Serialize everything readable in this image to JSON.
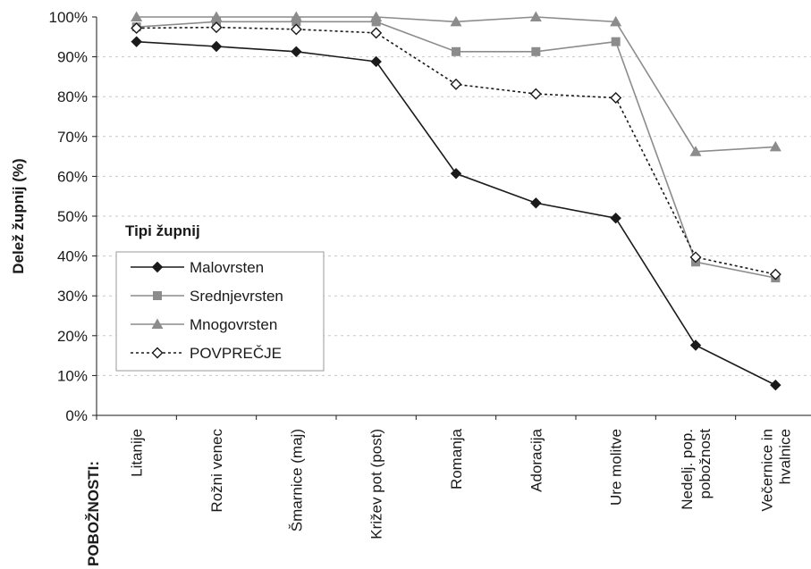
{
  "chart_data": {
    "type": "line",
    "ylabel": "Delež župnij (%)",
    "row_label": "POBOŽNOSTI:",
    "legend_title": "Tipi župnij",
    "legend_position": "left-middle",
    "ylim": [
      0,
      100
    ],
    "yticks": [
      0,
      10,
      20,
      30,
      40,
      50,
      60,
      70,
      80,
      90,
      100
    ],
    "ytick_labels": [
      "0%",
      "10%",
      "20%",
      "30%",
      "40%",
      "50%",
      "60%",
      "70%",
      "80%",
      "90%",
      "100%"
    ],
    "grid": true,
    "categories": [
      [
        "Litanije"
      ],
      [
        "Rožni venec"
      ],
      [
        "Šmarnice (maj)"
      ],
      [
        "Križev pot (post)"
      ],
      [
        "Romanja"
      ],
      [
        "Adoracija"
      ],
      [
        "Ure molitve"
      ],
      [
        "Nedelj. pop.",
        "pobožnost"
      ],
      [
        "Večernice in",
        "hvalnice"
      ]
    ],
    "series": [
      {
        "name": "Malovrsten",
        "marker": "diamond",
        "color": "#1a1a1a",
        "dash": false,
        "values": [
          93.8,
          92.6,
          91.3,
          88.8,
          60.7,
          53.3,
          49.5,
          17.6,
          7.6
        ]
      },
      {
        "name": "Srednjevrsten",
        "marker": "square",
        "color": "#8c8c8c",
        "dash": false,
        "values": [
          97.5,
          98.8,
          98.8,
          98.8,
          91.3,
          91.3,
          93.8,
          38.5,
          34.5
        ]
      },
      {
        "name": "Mnogovrsten",
        "marker": "triangle",
        "color": "#8c8c8c",
        "dash": false,
        "values": [
          100,
          100,
          100,
          100,
          98.8,
          100,
          98.8,
          66.2,
          67.4
        ]
      },
      {
        "name": "POVPREČJE",
        "marker": "diamond-open",
        "color": "#1a1a1a",
        "dash": true,
        "values": [
          97.2,
          97.4,
          96.9,
          96.0,
          83.1,
          80.7,
          79.7,
          39.7,
          35.4
        ]
      }
    ]
  }
}
